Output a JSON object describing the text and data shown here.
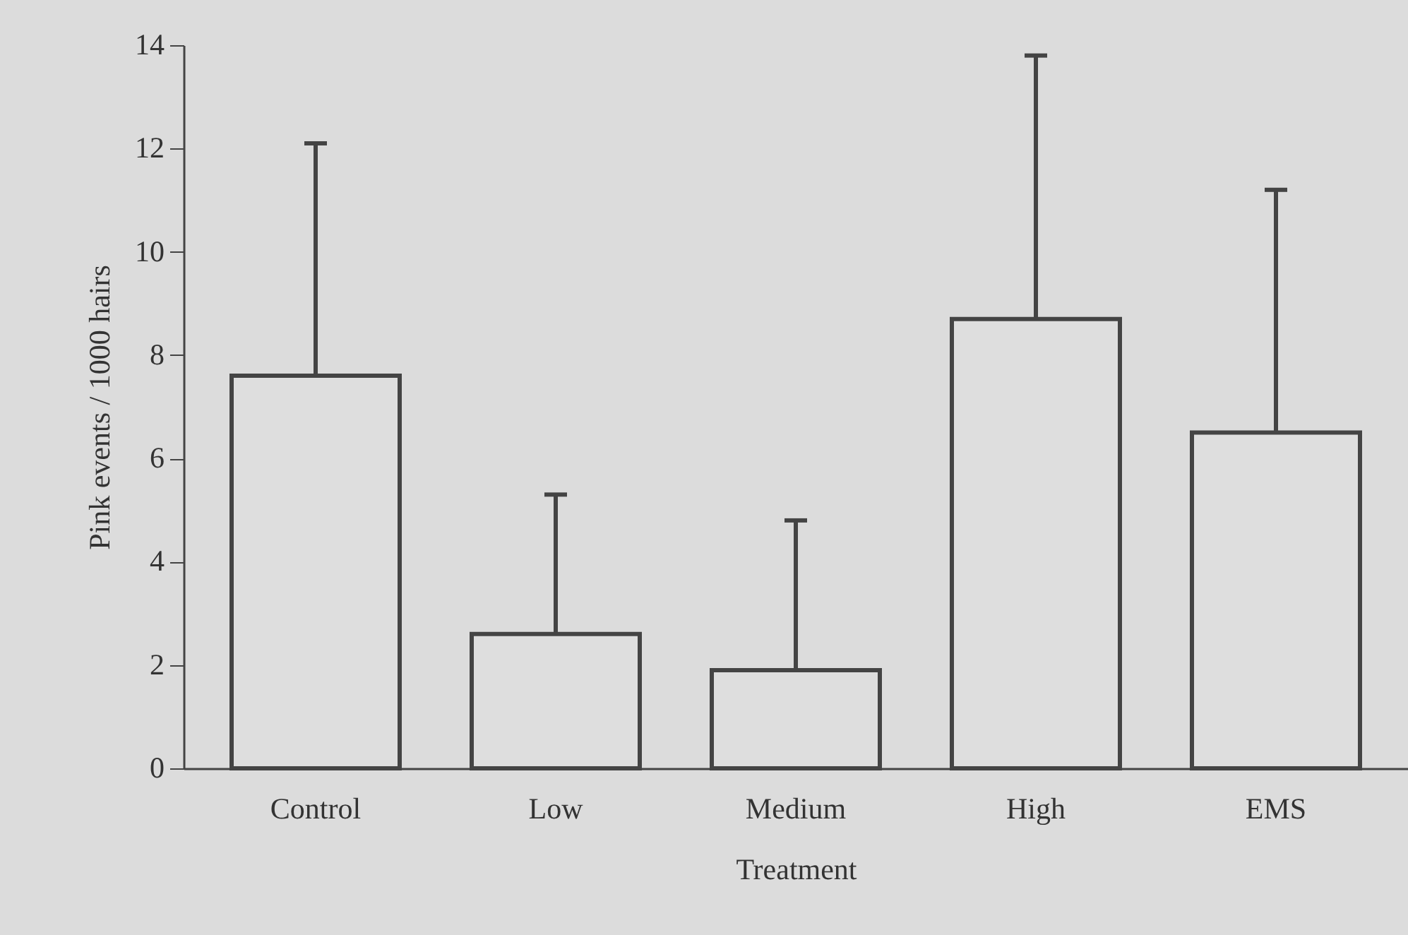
{
  "chart_data": {
    "type": "bar",
    "xlabel": "Treatment",
    "ylabel": "Pink events / 1000 hairs",
    "categories": [
      "Control",
      "Low",
      "Medium",
      "High",
      "EMS"
    ],
    "values": [
      7.6,
      2.6,
      1.9,
      8.7,
      6.5
    ],
    "errors": [
      [
        7.6,
        12.1
      ],
      [
        2.6,
        5.3
      ],
      [
        1.9,
        4.8
      ],
      [
        8.7,
        13.8
      ],
      [
        6.5,
        11.2
      ]
    ],
    "color": "#dedede",
    "ylim": [
      0,
      14
    ],
    "yticks": [
      0,
      2,
      4,
      6,
      8,
      10,
      12,
      14
    ]
  }
}
